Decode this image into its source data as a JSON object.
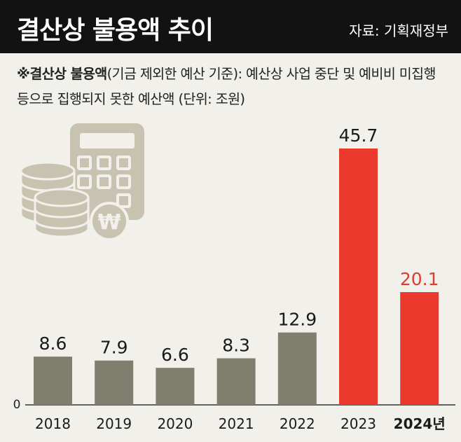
{
  "header": {
    "title": "결산상 불용액 추이",
    "source": "자료: 기획재정부"
  },
  "note": {
    "term": "※결산상 불용액",
    "definition": "(기금 제외한 예산 기준): 예산상 사업 중단 및 예비비 미집행 등으로 집행되지 못한 예산액 (단위: 조원)"
  },
  "icon": "calculator-coins-won-icon",
  "colors": {
    "past_bar": "#807e6c",
    "recent_bar": "#eb3a2b",
    "highlight_label": "#e33a2c",
    "icon": "#c8c3b0",
    "background": "#f1f0eb",
    "header": "#121212"
  },
  "chart_data": {
    "type": "bar",
    "categories": [
      "2018",
      "2019",
      "2020",
      "2021",
      "2022",
      "2023",
      "2024년"
    ],
    "values": [
      8.6,
      7.9,
      6.6,
      8.3,
      12.9,
      45.7,
      20.1
    ],
    "value_labels": [
      "8.6",
      "7.9",
      "6.6",
      "8.3",
      "12.9",
      "45.7",
      "20.1"
    ],
    "highlight": [
      false,
      false,
      false,
      false,
      false,
      true,
      true
    ],
    "label_highlight": [
      false,
      false,
      false,
      false,
      false,
      false,
      true
    ],
    "category_bold": [
      false,
      false,
      false,
      false,
      false,
      false,
      true
    ],
    "y_tick": "0",
    "ylim": [
      0,
      45.7
    ],
    "unit": "조원"
  }
}
